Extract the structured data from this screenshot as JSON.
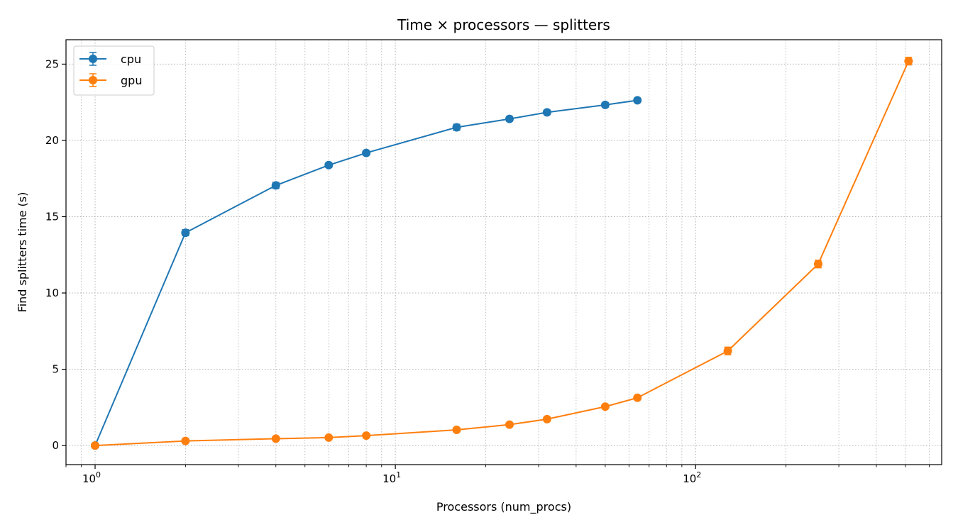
{
  "chart_data": {
    "type": "line",
    "title": "Time × processors — splitters",
    "xlabel": "Processors (num_procs)",
    "ylabel": "Find splitters time (s)",
    "x_scale": "log",
    "xlim": [
      0.8,
      660
    ],
    "ylim": [
      -1.25,
      26.6
    ],
    "x_ticks": [
      {
        "value": 1,
        "base": "10",
        "exp": "0"
      },
      {
        "value": 10,
        "base": "10",
        "exp": "1"
      },
      {
        "value": 100,
        "base": "10",
        "exp": "2"
      }
    ],
    "y_ticks": [
      0,
      5,
      10,
      15,
      20,
      25
    ],
    "grid": true,
    "legend_position": "top-left",
    "series": [
      {
        "name": "cpu",
        "color": "#1f77b4",
        "x": [
          1,
          2,
          4,
          6,
          8,
          16,
          24,
          32,
          50,
          64
        ],
        "y": [
          0.0,
          13.95,
          17.05,
          18.38,
          19.18,
          20.86,
          21.41,
          21.84,
          22.33,
          22.63
        ],
        "err": [
          0.05,
          0.2,
          0.2,
          0.15,
          0.15,
          0.2,
          0.15,
          0.15,
          0.15,
          0.12
        ]
      },
      {
        "name": "gpu",
        "color": "#ff7f0e",
        "x": [
          1,
          2,
          4,
          6,
          8,
          16,
          24,
          32,
          50,
          64,
          128,
          256,
          512
        ],
        "y": [
          0.0,
          0.3,
          0.45,
          0.52,
          0.65,
          1.03,
          1.37,
          1.73,
          2.55,
          3.13,
          6.2,
          11.9,
          25.2
        ],
        "err": [
          0.02,
          0.05,
          0.05,
          0.05,
          0.05,
          0.05,
          0.05,
          0.08,
          0.1,
          0.1,
          0.25,
          0.25,
          0.25
        ]
      }
    ]
  }
}
